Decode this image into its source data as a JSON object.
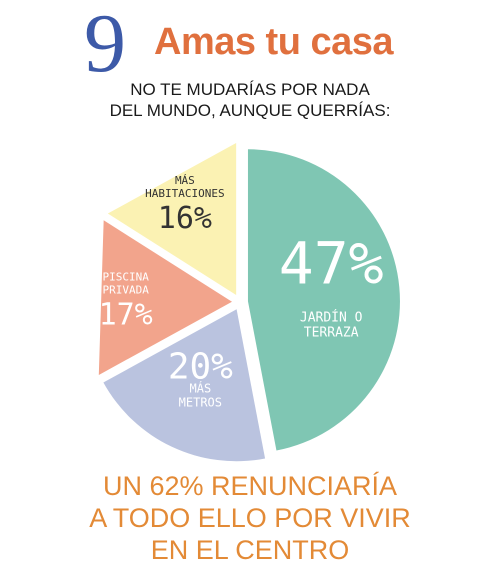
{
  "header": {
    "number": "9",
    "title": "Amas tu casa",
    "subtitle_line1": "NO TE MUDARÍAS POR NADA",
    "subtitle_line2": "DEL MUNDO, AUNQUE QUERRÍAS:"
  },
  "chart_data": {
    "type": "pie",
    "title": "",
    "slices": [
      {
        "label": [
          "JARDÍN O",
          "TERRAZA"
        ],
        "value": 47,
        "value_text": "47%",
        "color": "#7fc6b3"
      },
      {
        "label": [
          "MÁS",
          "METROS"
        ],
        "value": 20,
        "value_text": "20%",
        "color": "#bac3df"
      },
      {
        "label": [
          "PISCINA",
          "PRIVADA"
        ],
        "value": 17,
        "value_text": "17%",
        "color": "#f2a48c"
      },
      {
        "label": [
          "MÁS",
          "HABITACIONES"
        ],
        "value": 16,
        "value_text": "16%",
        "color": "#fbf2b3"
      }
    ],
    "label_color": "#ffffff",
    "dark_label_color": "#333333"
  },
  "footer": {
    "line1": "UN 62% RENUNCIARÍA",
    "line2": "A TODO ELLO POR VIVIR",
    "line3": "EN EL CENTRO"
  }
}
